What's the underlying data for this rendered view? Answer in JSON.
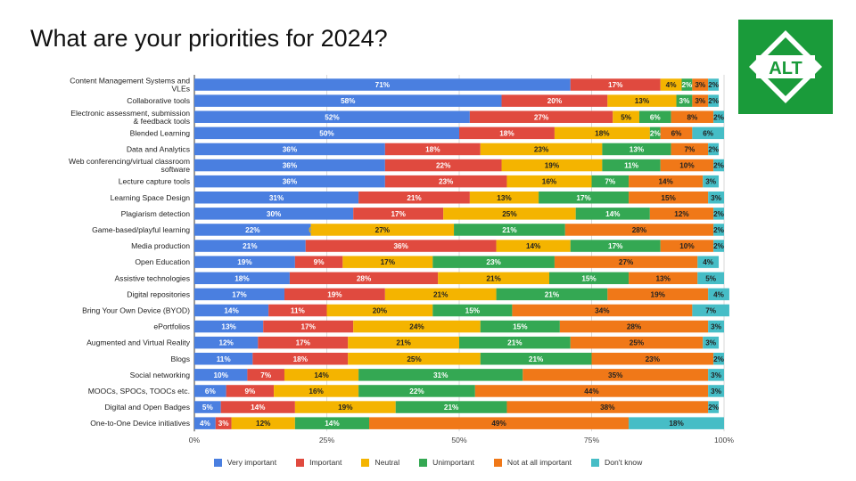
{
  "slide": {
    "title": "What are your priorities for 2024?",
    "logo_text": "ALT",
    "logo_color": "#1a9b3a"
  },
  "chart_data": {
    "type": "bar",
    "orientation": "horizontal",
    "stacked": true,
    "normalized": true,
    "categories": [
      "Content Management Systems and VLEs",
      "Collaborative tools",
      "Electronic assessment, submission & feedback tools",
      "Blended Learning",
      "Data and Analytics",
      "Web conferencing/virtual classroom software",
      "Lecture capture tools",
      "Learning Space Design",
      "Plagiarism detection",
      "Game-based/playful learning",
      "Media production",
      "Open Education",
      "Assistive technologies",
      "Digital repositories",
      "Bring Your Own Device (BYOD)",
      "ePortfolios",
      "Augmented and Virtual Reality",
      "Blogs",
      "Social networking",
      "MOOCs, SPOCs, TOOCs etc.",
      "Digital and Open Badges",
      "One-to-One Device initiatives"
    ],
    "category_lines": [
      [
        "Content Management Systems and",
        "VLEs"
      ],
      [
        "Collaborative tools"
      ],
      [
        "Electronic assessment, submission",
        "& feedback tools"
      ],
      [
        "Blended Learning"
      ],
      [
        "Data and Analytics"
      ],
      [
        "Web conferencing/virtual classroom",
        "software"
      ],
      [
        "Lecture capture tools"
      ],
      [
        "Learning Space Design"
      ],
      [
        "Plagiarism detection"
      ],
      [
        "Game-based/playful learning"
      ],
      [
        "Media production"
      ],
      [
        "Open Education"
      ],
      [
        "Assistive technologies"
      ],
      [
        "Digital repositories"
      ],
      [
        "Bring Your Own Device (BYOD)"
      ],
      [
        "ePortfolios"
      ],
      [
        "Augmented and Virtual Reality"
      ],
      [
        "Blogs"
      ],
      [
        "Social networking"
      ],
      [
        "MOOCs, SPOCs, TOOCs etc."
      ],
      [
        "Digital and Open Badges"
      ],
      [
        "One-to-One Device initiatives"
      ]
    ],
    "series": [
      {
        "name": "Very important",
        "color": "#4a7fe0",
        "label_color": "#ffffff",
        "values": [
          71,
          58,
          52,
          50,
          36,
          36,
          36,
          31,
          30,
          22,
          21,
          19,
          18,
          17,
          14,
          13,
          12,
          11,
          10,
          6,
          5,
          4
        ]
      },
      {
        "name": "Important",
        "color": "#e04a3f",
        "label_color": "#ffffff",
        "values": [
          17,
          20,
          27,
          18,
          18,
          22,
          23,
          21,
          17,
          0,
          36,
          9,
          28,
          19,
          11,
          17,
          17,
          18,
          7,
          9,
          14,
          3
        ]
      },
      {
        "name": "Neutral",
        "color": "#f4b400",
        "label_color": "#222222",
        "values": [
          4,
          13,
          5,
          18,
          23,
          19,
          16,
          13,
          25,
          27,
          14,
          17,
          21,
          21,
          20,
          24,
          21,
          25,
          14,
          16,
          19,
          12
        ]
      },
      {
        "name": "Unimportant",
        "color": "#34a853",
        "label_color": "#ffffff",
        "values": [
          2,
          3,
          6,
          2,
          13,
          11,
          7,
          17,
          14,
          21,
          17,
          23,
          15,
          21,
          15,
          15,
          21,
          21,
          31,
          22,
          21,
          14
        ]
      },
      {
        "name": "Not at all important",
        "color": "#f07818",
        "label_color": "#222222",
        "values": [
          3,
          3,
          8,
          6,
          7,
          10,
          14,
          15,
          12,
          28,
          10,
          27,
          13,
          19,
          34,
          28,
          25,
          23,
          35,
          44,
          38,
          49
        ]
      },
      {
        "name": "Don't know",
        "color": "#46bdc6",
        "label_color": "#222222",
        "values": [
          2,
          2,
          2,
          6,
          2,
          2,
          3,
          3,
          2,
          2,
          2,
          4,
          5,
          4,
          7,
          3,
          3,
          2,
          3,
          3,
          2,
          18
        ]
      }
    ],
    "xlim": [
      0,
      100
    ],
    "x_ticks": [
      "0%",
      "25%",
      "50%",
      "75%",
      "100%"
    ],
    "legend_position": "bottom",
    "grid": true
  }
}
